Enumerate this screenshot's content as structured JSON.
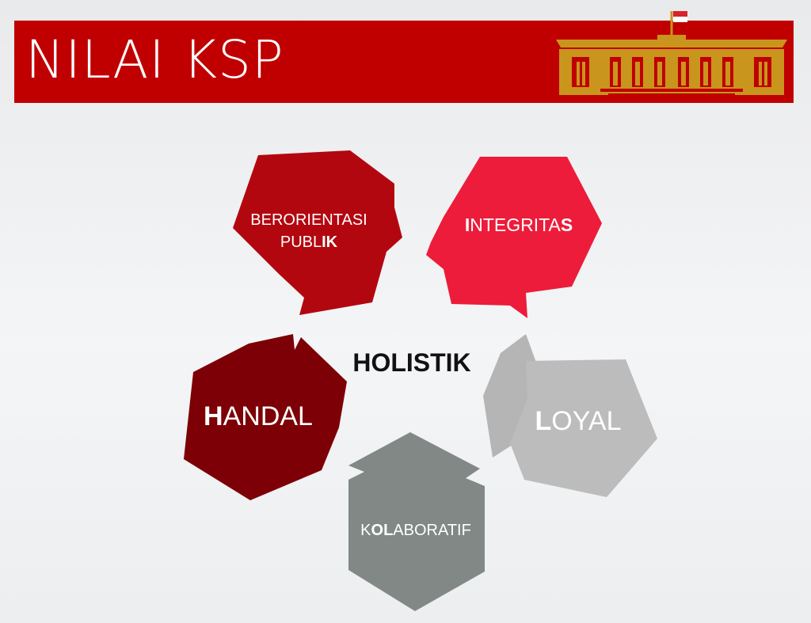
{
  "slide": {
    "title": "NILAI KSP"
  },
  "diagram": {
    "center": "HOLISTIK",
    "nodes": [
      {
        "id": "berorientasi-publik",
        "color": "#b30710",
        "lines": [
          [
            {
              "t": "BERORIENTASI",
              "b": false
            }
          ],
          [
            {
              "t": "PUBL",
              "b": false
            },
            {
              "t": "IK",
              "b": true
            }
          ]
        ]
      },
      {
        "id": "integritas",
        "color": "#ec1c3a",
        "lines": [
          [
            {
              "t": "I",
              "b": true
            },
            {
              "t": "NTEGRITA",
              "b": false
            },
            {
              "t": "S",
              "b": true
            }
          ]
        ]
      },
      {
        "id": "handal",
        "color": "#7c0006",
        "lines": [
          [
            {
              "t": "H",
              "b": true
            },
            {
              "t": "ANDAL",
              "b": false
            }
          ]
        ]
      },
      {
        "id": "loyal",
        "color": "#bcbcbc",
        "lines": [
          [
            {
              "t": "L",
              "b": true
            },
            {
              "t": "OYAL",
              "b": false
            }
          ]
        ]
      },
      {
        "id": "kolaboratif",
        "color": "#818886",
        "lines": [
          [
            {
              "t": "K",
              "b": false
            },
            {
              "t": "OL",
              "b": true
            },
            {
              "t": "ABORATIF",
              "b": false
            }
          ]
        ]
      }
    ]
  },
  "logo": {
    "flag_colors": [
      "#d8232a",
      "#ffffff"
    ],
    "building_color": "#c9951c"
  }
}
